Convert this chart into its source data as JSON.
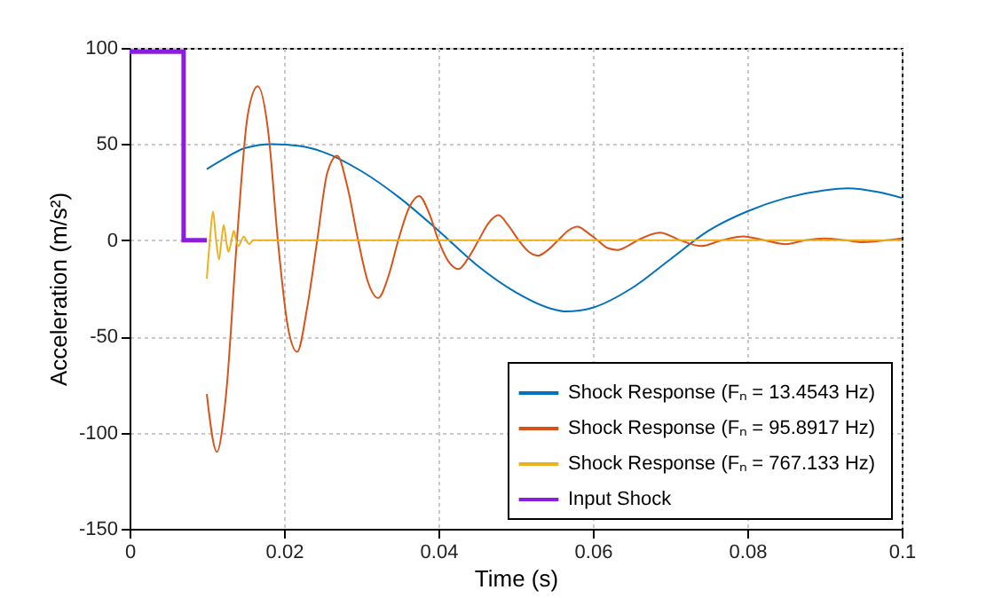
{
  "chart_data": {
    "type": "line",
    "xlabel": "Time (s)",
    "ylabel": "Acceleration (m/s²)",
    "xlim": [
      0,
      0.1
    ],
    "xticks": [
      0,
      0.02,
      0.04,
      0.06,
      0.08,
      0.1
    ],
    "ylim": [
      -150,
      100
    ],
    "yticks": [
      -150,
      -100,
      -50,
      0,
      50,
      100
    ],
    "grid": true,
    "legend": "bottom right",
    "series": [
      {
        "name": "Shock Response (Fₙ =  13.4543 Hz)",
        "color": "#0072bd",
        "x": [
          0.01,
          0.0125,
          0.015,
          0.0185,
          0.022,
          0.025,
          0.03,
          0.035,
          0.04,
          0.045,
          0.05,
          0.055,
          0.0565,
          0.06,
          0.065,
          0.07,
          0.075,
          0.08,
          0.085,
          0.09,
          0.093,
          0.097,
          0.1
        ],
        "values": [
          37,
          43,
          48,
          50,
          49,
          46,
          36,
          22,
          5,
          -13,
          -27,
          -36,
          -37,
          -35,
          -25,
          -10,
          5,
          15,
          22,
          26,
          27,
          25,
          22
        ]
      },
      {
        "name": "Shock Response (Fₙ =  95.8917 Hz)",
        "color": "#d95319",
        "x": [
          0.01,
          0.0113,
          0.0125,
          0.0139,
          0.0153,
          0.0166,
          0.018,
          0.0192,
          0.0205,
          0.0217,
          0.023,
          0.0243,
          0.0256,
          0.0269,
          0.0282,
          0.0296,
          0.0309,
          0.0322,
          0.0335,
          0.0348,
          0.0362,
          0.0375,
          0.0388,
          0.04,
          0.0413,
          0.0426,
          0.0439,
          0.0452,
          0.0465,
          0.0478,
          0.049,
          0.0504,
          0.0517,
          0.0529,
          0.0542,
          0.0555,
          0.0568,
          0.058,
          0.0593,
          0.0606,
          0.0619,
          0.0632,
          0.0645,
          0.0658,
          0.0687,
          0.0713,
          0.074,
          0.0767,
          0.0795,
          0.0822,
          0.085,
          0.0875,
          0.09,
          0.0927,
          0.095,
          0.098,
          0.1
        ],
        "values": [
          -80,
          -110,
          -80,
          0,
          65,
          80,
          55,
          0,
          -45,
          -58,
          -35,
          0,
          35,
          44,
          28,
          0,
          -22,
          -30,
          -19,
          0,
          17,
          23,
          14,
          0,
          -11,
          -15,
          -9,
          0,
          9,
          13,
          8,
          0,
          -6,
          -8,
          -5,
          0,
          5,
          7,
          4,
          0,
          -4,
          -5,
          -3,
          0,
          4,
          0,
          -3,
          0,
          2,
          0,
          -2,
          0,
          1,
          0,
          -1,
          0,
          1
        ]
      },
      {
        "name": "Shock Response (Fₙ =  767.133 Hz)",
        "color": "#edb120",
        "x": [
          0.01,
          0.0104,
          0.0108,
          0.0112,
          0.0116,
          0.0119,
          0.0122,
          0.0125,
          0.0128,
          0.0132,
          0.0135,
          0.0138,
          0.0141,
          0.0145,
          0.0148,
          0.0151,
          0.0155,
          0.016,
          0.02,
          0.1
        ],
        "values": [
          -20,
          0,
          15,
          0,
          -10,
          0,
          8,
          0,
          -6,
          0,
          5,
          0,
          -3,
          0,
          2,
          0,
          -2,
          0,
          0,
          0
        ]
      },
      {
        "name": "Input Shock",
        "type": "step",
        "color": "#8b1ede",
        "x": [
          0,
          0.007,
          0.01
        ],
        "values": [
          98,
          0,
          0
        ]
      }
    ]
  }
}
